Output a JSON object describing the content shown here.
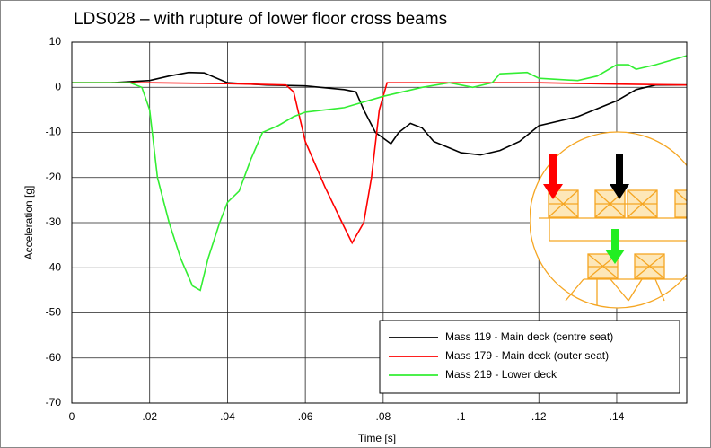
{
  "chart_data": {
    "type": "line",
    "title": "LDS028 – with rupture of lower floor cross beams",
    "xlabel": "Time [s]",
    "ylabel": "Acceleration [g]",
    "xlim": [
      0,
      0.158
    ],
    "ylim": [
      -70,
      10
    ],
    "xticks": [
      0,
      {
        "value": 0.02,
        "label": ".02"
      },
      {
        "value": 0.04,
        "label": ".04"
      },
      {
        "value": 0.06,
        "label": ".06"
      },
      {
        "value": 0.08,
        "label": ".08"
      },
      {
        "value": 0.1,
        "label": ".1"
      },
      {
        "value": 0.12,
        "label": ".12"
      },
      {
        "value": 0.14,
        "label": ".14"
      }
    ],
    "yticks": [
      -70,
      -60,
      -50,
      -40,
      -30,
      -20,
      -10,
      0,
      10
    ],
    "grid": true,
    "legend": "lower right",
    "series": [
      {
        "name": "Mass 119 - Main deck (centre seat)",
        "color": "#000000",
        "x": [
          0,
          0.01,
          0.02,
          0.025,
          0.03,
          0.034,
          0.04,
          0.05,
          0.06,
          0.07,
          0.073,
          0.075,
          0.078,
          0.082,
          0.084,
          0.087,
          0.09,
          0.093,
          0.1,
          0.105,
          0.11,
          0.115,
          0.12,
          0.13,
          0.14,
          0.145,
          0.15,
          0.158
        ],
        "values": [
          1,
          1,
          1.5,
          2.5,
          3.3,
          3.2,
          1,
          0.5,
          0.3,
          -0.5,
          -1,
          -5,
          -10,
          -12.5,
          -10,
          -8,
          -9,
          -12,
          -14.5,
          -15,
          -14,
          -12,
          -8.5,
          -6.5,
          -3,
          -0.5,
          0.5,
          0.5
        ]
      },
      {
        "name": "Mass 179 - Main deck (outer seat)",
        "color": "#ff0000",
        "x": [
          0,
          0.02,
          0.04,
          0.055,
          0.057,
          0.06,
          0.065,
          0.07,
          0.072,
          0.075,
          0.077,
          0.079,
          0.081,
          0.1,
          0.12,
          0.14,
          0.158
        ],
        "values": [
          1,
          1,
          0.8,
          0.5,
          -1,
          -12,
          -22,
          -31,
          -34.5,
          -30,
          -20,
          -5,
          1,
          1,
          1,
          0.7,
          0.5
        ]
      },
      {
        "name": "Mass 219 - Lower deck",
        "color": "#33ee33",
        "x": [
          0,
          0.015,
          0.018,
          0.02,
          0.022,
          0.025,
          0.028,
          0.031,
          0.033,
          0.035,
          0.038,
          0.04,
          0.043,
          0.046,
          0.049,
          0.053,
          0.057,
          0.06,
          0.07,
          0.08,
          0.09,
          0.097,
          0.1,
          0.103,
          0.108,
          0.11,
          0.117,
          0.12,
          0.13,
          0.135,
          0.14,
          0.143,
          0.145,
          0.15,
          0.158
        ],
        "values": [
          1,
          1,
          0,
          -5,
          -20,
          -30,
          -38,
          -44,
          -45,
          -38,
          -30,
          -25.5,
          -23,
          -16,
          -10,
          -8.5,
          -6.5,
          -5.5,
          -4.5,
          -2,
          0,
          1,
          0.5,
          0,
          1,
          3,
          3.3,
          2,
          1.5,
          2.5,
          5,
          5,
          4,
          5,
          7
        ]
      }
    ]
  }
}
